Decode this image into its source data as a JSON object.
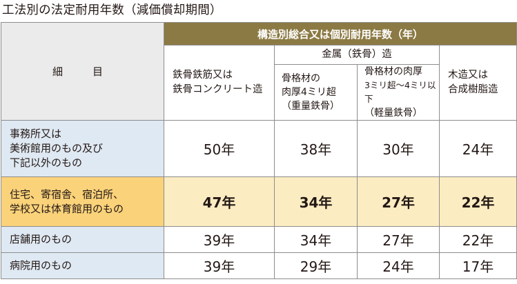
{
  "title": "工法別の法定耐用年数（減価償却期間）",
  "header": {
    "group": "構造別総合又は個別耐用年数（年）",
    "item": "細　目",
    "metal_group": "金属（鉄骨）造",
    "col_src": [
      "鉄骨鉄筋又は",
      "鉄骨コンクリート造"
    ],
    "col_heavy": [
      "骨格材の",
      "肉厚4ミリ超",
      "（重量鉄骨）"
    ],
    "col_light": [
      "骨格材の肉厚",
      "3ミリ超～4ミリ以下",
      "（軽量鉄骨）"
    ],
    "col_wood": [
      "木造又は",
      "合成樹脂造"
    ]
  },
  "rows": [
    {
      "label": [
        "事務所又は",
        "美術館用のもの及び",
        "下記以外のもの"
      ],
      "values": [
        "50年",
        "38年",
        "30年",
        "24年"
      ]
    },
    {
      "label": [
        "住宅、寄宿舎、宿泊所、",
        "学校又は体育館用のもの"
      ],
      "values": [
        "47年",
        "34年",
        "27年",
        "22年"
      ]
    },
    {
      "label": [
        "店舗用のもの"
      ],
      "values": [
        "39年",
        "34年",
        "27年",
        "22年"
      ]
    },
    {
      "label": [
        "病院用のもの"
      ],
      "values": [
        "39年",
        "29年",
        "24年",
        "17年"
      ]
    }
  ],
  "colors": {
    "header_gold": "#8c7a44",
    "row_blue": "#dfe9f3",
    "row_highlight": "#fbecc2",
    "label_highlight": "#fad27a"
  }
}
